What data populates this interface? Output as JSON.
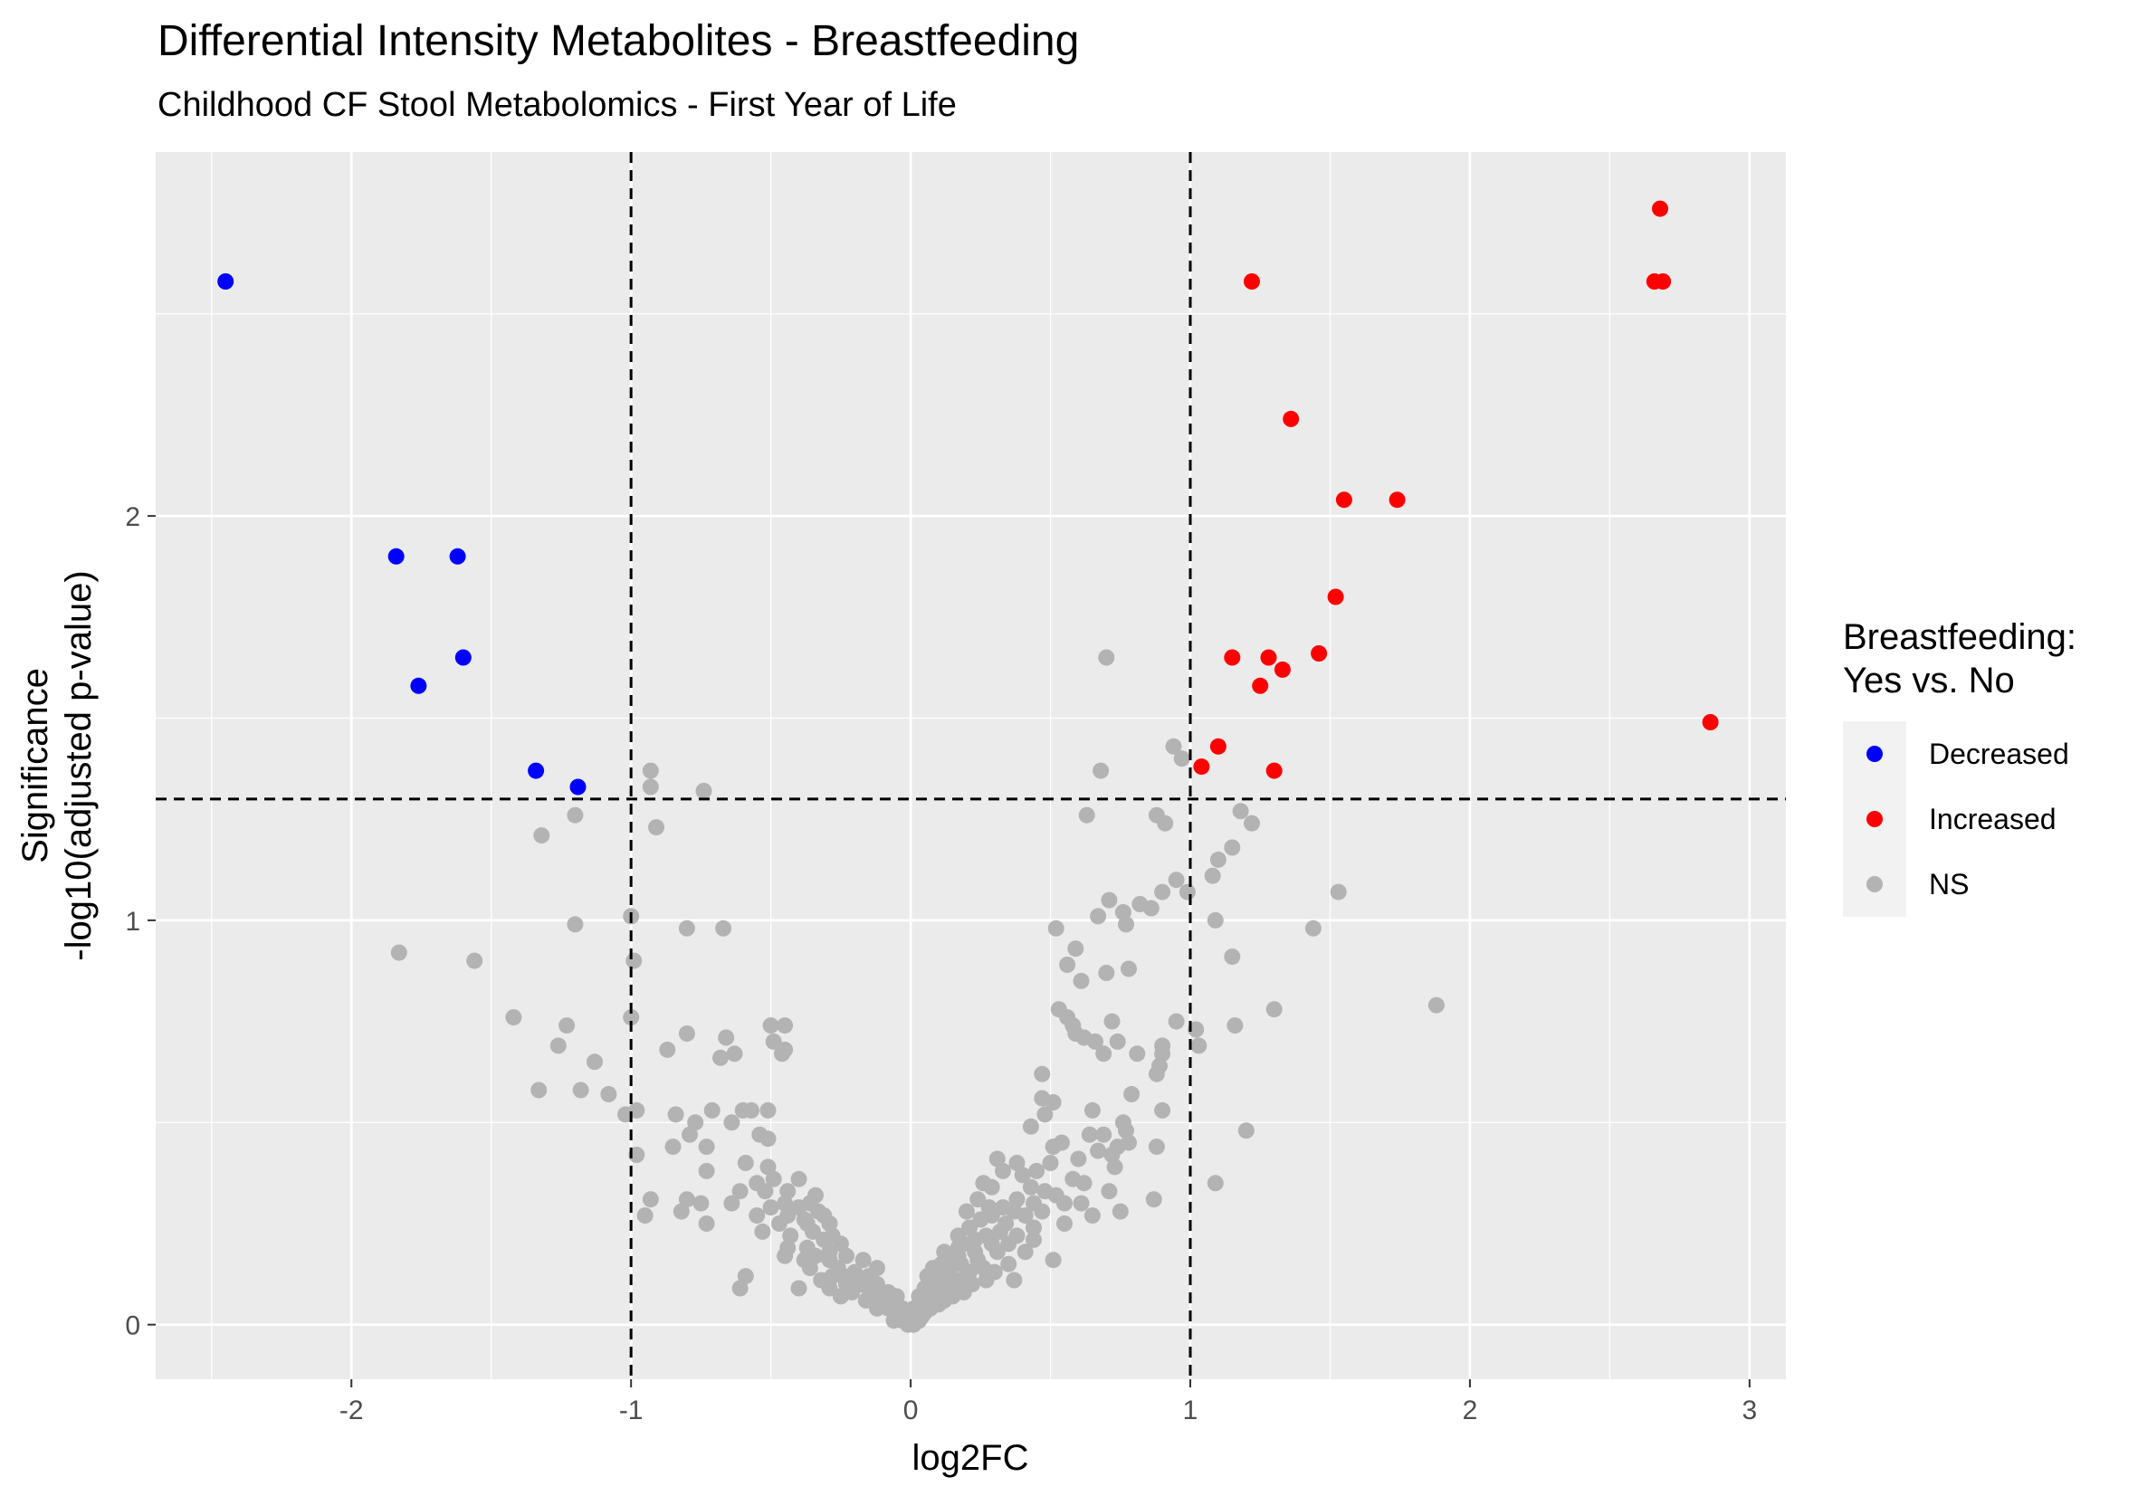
{
  "chart_data": {
    "type": "scatter",
    "title": "Differential Intensity Metabolites - Breastfeeding",
    "subtitle": "Childhood CF Stool Metabolomics - First Year of Life",
    "xlabel": "log2FC",
    "ylabel_line1": "Significance",
    "ylabel_line2": "-log10(adjusted p-value)",
    "xlim": [
      -2.7,
      3.13
    ],
    "ylim": [
      -0.135,
      2.9
    ],
    "x_ticks": [
      -2,
      -1,
      0,
      1,
      2,
      3
    ],
    "y_ticks": [
      0,
      1,
      2
    ],
    "x_thresholds": [
      -1,
      1
    ],
    "y_threshold": 1.3,
    "grid": true,
    "legend": {
      "title_line1": "Breastfeeding:",
      "title_line2": "Yes vs. No",
      "placement": "right",
      "entries": [
        "Decreased",
        "Increased",
        "NS"
      ]
    },
    "colors": {
      "Decreased": "#0000ff",
      "Increased": "#ff0000",
      "NS": "#b3b3b3",
      "panel": "#ebebeb",
      "grid": "#ffffff"
    },
    "series": [
      {
        "name": "Decreased",
        "points": [
          [
            -2.45,
            2.58
          ],
          [
            -1.84,
            1.9
          ],
          [
            -1.62,
            1.9
          ],
          [
            -1.6,
            1.65
          ],
          [
            -1.76,
            1.58
          ],
          [
            -1.34,
            1.37
          ],
          [
            -1.19,
            1.33
          ]
        ]
      },
      {
        "name": "Increased",
        "points": [
          [
            2.68,
            2.76
          ],
          [
            2.66,
            2.58
          ],
          [
            2.69,
            2.58
          ],
          [
            1.22,
            2.58
          ],
          [
            1.36,
            2.24
          ],
          [
            1.55,
            2.04
          ],
          [
            1.74,
            2.04
          ],
          [
            1.52,
            1.8
          ],
          [
            1.15,
            1.65
          ],
          [
            1.28,
            1.65
          ],
          [
            1.46,
            1.66
          ],
          [
            1.33,
            1.62
          ],
          [
            1.25,
            1.58
          ],
          [
            2.86,
            1.49
          ],
          [
            1.1,
            1.43
          ],
          [
            1.04,
            1.38
          ],
          [
            1.3,
            1.37
          ]
        ]
      },
      {
        "name": "NS",
        "points": [
          [
            0.7,
            1.65
          ],
          [
            0.94,
            1.43
          ],
          [
            0.97,
            1.4
          ],
          [
            0.68,
            1.37
          ],
          [
            -0.93,
            1.37
          ],
          [
            -0.93,
            1.33
          ],
          [
            -0.74,
            1.32
          ],
          [
            0.63,
            1.26
          ],
          [
            1.18,
            1.27
          ],
          [
            1.22,
            1.24
          ],
          [
            0.88,
            1.26
          ],
          [
            0.91,
            1.24
          ],
          [
            -1.2,
            1.26
          ],
          [
            -0.91,
            1.23
          ],
          [
            -1.32,
            1.21
          ],
          [
            1.15,
            1.18
          ],
          [
            1.1,
            1.15
          ],
          [
            1.08,
            1.11
          ],
          [
            0.95,
            1.1
          ],
          [
            1.53,
            1.07
          ],
          [
            0.9,
            1.07
          ],
          [
            0.99,
            1.07
          ],
          [
            0.71,
            1.05
          ],
          [
            0.82,
            1.04
          ],
          [
            0.86,
            1.03
          ],
          [
            0.76,
            1.02
          ],
          [
            0.67,
            1.01
          ],
          [
            0.77,
            0.99
          ],
          [
            1.09,
            1.0
          ],
          [
            -1.0,
            1.01
          ],
          [
            -1.2,
            0.99
          ],
          [
            -0.8,
            0.98
          ],
          [
            -0.67,
            0.98
          ],
          [
            0.52,
            0.98
          ],
          [
            1.44,
            0.98
          ],
          [
            0.59,
            0.93
          ],
          [
            -1.83,
            0.92
          ],
          [
            1.15,
            0.91
          ],
          [
            -1.56,
            0.9
          ],
          [
            -0.99,
            0.9
          ],
          [
            0.56,
            0.89
          ],
          [
            0.78,
            0.88
          ],
          [
            0.7,
            0.87
          ],
          [
            0.61,
            0.85
          ],
          [
            1.88,
            0.79
          ],
          [
            0.53,
            0.78
          ],
          [
            1.3,
            0.78
          ],
          [
            -1.42,
            0.76
          ],
          [
            -1.0,
            0.76
          ],
          [
            0.56,
            0.76
          ],
          [
            0.58,
            0.74
          ],
          [
            -1.23,
            0.74
          ],
          [
            -0.5,
            0.74
          ],
          [
            -0.45,
            0.74
          ],
          [
            0.72,
            0.75
          ],
          [
            0.95,
            0.75
          ],
          [
            1.16,
            0.74
          ],
          [
            1.02,
            0.73
          ],
          [
            -0.8,
            0.72
          ],
          [
            0.59,
            0.72
          ],
          [
            0.62,
            0.71
          ],
          [
            -0.66,
            0.71
          ],
          [
            -0.49,
            0.7
          ],
          [
            0.66,
            0.7
          ],
          [
            0.74,
            0.7
          ],
          [
            0.9,
            0.69
          ],
          [
            1.03,
            0.69
          ],
          [
            -1.26,
            0.69
          ],
          [
            -0.87,
            0.68
          ],
          [
            -0.45,
            0.68
          ],
          [
            -0.63,
            0.67
          ],
          [
            0.69,
            0.67
          ],
          [
            0.81,
            0.67
          ],
          [
            0.9,
            0.67
          ],
          [
            -0.46,
            0.67
          ],
          [
            -0.68,
            0.66
          ],
          [
            -1.13,
            0.65
          ],
          [
            0.89,
            0.64
          ],
          [
            0.88,
            0.62
          ],
          [
            0.47,
            0.62
          ],
          [
            -1.33,
            0.58
          ],
          [
            -1.18,
            0.58
          ],
          [
            -1.08,
            0.57
          ],
          [
            0.79,
            0.57
          ],
          [
            0.47,
            0.56
          ],
          [
            0.51,
            0.55
          ],
          [
            0.9,
            0.53
          ],
          [
            -0.51,
            0.53
          ],
          [
            -1.02,
            0.52
          ],
          [
            -0.98,
            0.53
          ],
          [
            -0.84,
            0.52
          ],
          [
            -0.71,
            0.53
          ],
          [
            -0.6,
            0.53
          ],
          [
            -0.57,
            0.53
          ],
          [
            -0.64,
            0.5
          ],
          [
            -0.77,
            0.5
          ],
          [
            0.65,
            0.53
          ],
          [
            0.48,
            0.52
          ],
          [
            0.76,
            0.5
          ],
          [
            0.43,
            0.49
          ],
          [
            0.64,
            0.47
          ],
          [
            0.69,
            0.47
          ],
          [
            0.77,
            0.48
          ],
          [
            1.2,
            0.48
          ],
          [
            -0.79,
            0.47
          ],
          [
            -0.54,
            0.47
          ],
          [
            -0.51,
            0.46
          ],
          [
            0.54,
            0.45
          ],
          [
            0.78,
            0.45
          ],
          [
            0.88,
            0.44
          ],
          [
            0.74,
            0.44
          ],
          [
            0.51,
            0.44
          ],
          [
            -0.73,
            0.44
          ],
          [
            -0.85,
            0.44
          ],
          [
            0.67,
            0.43
          ],
          [
            0.72,
            0.42
          ],
          [
            -0.98,
            0.42
          ],
          [
            0.31,
            0.41
          ],
          [
            0.6,
            0.41
          ],
          [
            0.5,
            0.4
          ],
          [
            0.38,
            0.4
          ],
          [
            -0.59,
            0.4
          ],
          [
            -0.51,
            0.39
          ],
          [
            0.73,
            0.39
          ],
          [
            -0.73,
            0.38
          ],
          [
            0.45,
            0.38
          ],
          [
            0.33,
            0.38
          ],
          [
            0.4,
            0.37
          ],
          [
            -0.49,
            0.36
          ],
          [
            0.58,
            0.36
          ],
          [
            -0.4,
            0.36
          ],
          [
            0.26,
            0.35
          ],
          [
            -0.55,
            0.35
          ],
          [
            1.09,
            0.35
          ],
          [
            0.62,
            0.35
          ],
          [
            0.43,
            0.34
          ],
          [
            0.29,
            0.34
          ],
          [
            0.48,
            0.33
          ],
          [
            -0.61,
            0.33
          ],
          [
            -0.52,
            0.33
          ],
          [
            -0.44,
            0.33
          ],
          [
            0.71,
            0.33
          ],
          [
            -0.34,
            0.32
          ],
          [
            0.52,
            0.32
          ],
          [
            0.38,
            0.31
          ],
          [
            0.24,
            0.31
          ],
          [
            -0.93,
            0.31
          ],
          [
            -0.8,
            0.31
          ],
          [
            -0.75,
            0.3
          ],
          [
            -0.64,
            0.3
          ],
          [
            -0.45,
            0.3
          ],
          [
            -0.36,
            0.3
          ],
          [
            0.55,
            0.3
          ],
          [
            0.44,
            0.3
          ],
          [
            0.33,
            0.29
          ],
          [
            0.28,
            0.29
          ],
          [
            0.61,
            0.3
          ],
          [
            0.87,
            0.31
          ],
          [
            -0.5,
            0.29
          ],
          [
            -0.4,
            0.29
          ],
          [
            -0.33,
            0.28
          ],
          [
            -0.82,
            0.28
          ],
          [
            0.2,
            0.28
          ],
          [
            0.47,
            0.28
          ],
          [
            0.37,
            0.28
          ],
          [
            -0.95,
            0.27
          ],
          [
            -0.55,
            0.27
          ],
          [
            -0.44,
            0.27
          ],
          [
            -0.31,
            0.27
          ],
          [
            0.29,
            0.27
          ],
          [
            0.65,
            0.27
          ],
          [
            0.75,
            0.28
          ],
          [
            0.41,
            0.27
          ],
          [
            -0.38,
            0.26
          ],
          [
            0.25,
            0.26
          ],
          [
            -0.29,
            0.25
          ],
          [
            -0.73,
            0.25
          ],
          [
            -0.47,
            0.25
          ],
          [
            -0.37,
            0.25
          ],
          [
            0.34,
            0.25
          ],
          [
            0.55,
            0.25
          ],
          [
            0.21,
            0.24
          ],
          [
            0.44,
            0.24
          ],
          [
            -0.53,
            0.23
          ],
          [
            -0.35,
            0.23
          ],
          [
            0.32,
            0.23
          ],
          [
            -0.43,
            0.22
          ],
          [
            -0.28,
            0.22
          ],
          [
            0.17,
            0.22
          ],
          [
            0.27,
            0.22
          ],
          [
            0.38,
            0.22
          ],
          [
            -0.31,
            0.21
          ],
          [
            0.23,
            0.21
          ],
          [
            0.44,
            0.21
          ],
          [
            -0.25,
            0.2
          ],
          [
            0.19,
            0.2
          ],
          [
            0.29,
            0.2
          ],
          [
            0.35,
            0.2
          ],
          [
            -0.37,
            0.19
          ],
          [
            -0.44,
            0.19
          ],
          [
            0.17,
            0.19
          ],
          [
            -0.29,
            0.18
          ],
          [
            0.12,
            0.18
          ],
          [
            0.23,
            0.18
          ],
          [
            0.31,
            0.18
          ],
          [
            -0.34,
            0.17
          ],
          [
            0.41,
            0.18
          ],
          [
            -0.23,
            0.17
          ],
          [
            0.17,
            0.17
          ],
          [
            -0.45,
            0.17
          ],
          [
            0.14,
            0.16
          ],
          [
            0.24,
            0.16
          ],
          [
            -0.29,
            0.16
          ],
          [
            -0.17,
            0.16
          ],
          [
            0.51,
            0.16
          ],
          [
            -0.38,
            0.16
          ],
          [
            0.35,
            0.15
          ],
          [
            0.11,
            0.15
          ],
          [
            0.18,
            0.15
          ],
          [
            0.26,
            0.14
          ],
          [
            -0.26,
            0.14
          ],
          [
            -0.12,
            0.14
          ],
          [
            -0.36,
            0.14
          ],
          [
            0.08,
            0.14
          ],
          [
            -0.2,
            0.13
          ],
          [
            0.14,
            0.13
          ],
          [
            0.21,
            0.13
          ],
          [
            0.3,
            0.13
          ],
          [
            -0.28,
            0.12
          ],
          [
            -0.15,
            0.12
          ],
          [
            -0.59,
            0.12
          ],
          [
            0.06,
            0.12
          ],
          [
            0.12,
            0.12
          ],
          [
            -0.24,
            0.12
          ],
          [
            0.18,
            0.11
          ],
          [
            -0.32,
            0.11
          ],
          [
            0.37,
            0.11
          ],
          [
            0.27,
            0.11
          ],
          [
            -0.18,
            0.1
          ],
          [
            0.09,
            0.1
          ],
          [
            0.15,
            0.1
          ],
          [
            -0.12,
            0.1
          ],
          [
            -0.23,
            0.1
          ],
          [
            0.22,
            0.1
          ],
          [
            -0.29,
            0.09
          ],
          [
            -0.61,
            0.09
          ],
          [
            -0.4,
            0.09
          ],
          [
            0.05,
            0.09
          ],
          [
            -0.15,
            0.09
          ],
          [
            0.11,
            0.09
          ],
          [
            0.19,
            0.08
          ],
          [
            -0.08,
            0.08
          ],
          [
            -0.21,
            0.08
          ],
          [
            0.08,
            0.08
          ],
          [
            -0.13,
            0.08
          ],
          [
            0.15,
            0.07
          ],
          [
            -0.25,
            0.07
          ],
          [
            -0.05,
            0.07
          ],
          [
            0.03,
            0.07
          ],
          [
            -0.1,
            0.06
          ],
          [
            0.12,
            0.06
          ],
          [
            0.07,
            0.06
          ],
          [
            -0.16,
            0.06
          ],
          [
            -0.06,
            0.05
          ],
          [
            0.04,
            0.05
          ],
          [
            0.1,
            0.05
          ],
          [
            -0.11,
            0.05
          ],
          [
            0.01,
            0.04
          ],
          [
            -0.03,
            0.04
          ],
          [
            0.07,
            0.04
          ],
          [
            -0.08,
            0.04
          ],
          [
            -0.12,
            0.04
          ],
          [
            0.05,
            0.03
          ],
          [
            -0.02,
            0.03
          ],
          [
            -0.05,
            0.02
          ],
          [
            0.02,
            0.02
          ],
          [
            0.04,
            0.02
          ],
          [
            -0.03,
            0.01
          ],
          [
            0.0,
            0.01
          ],
          [
            0.01,
            0.0
          ],
          [
            -0.01,
            0.0
          ],
          [
            0.03,
            0.01
          ],
          [
            -0.06,
            0.01
          ]
        ]
      }
    ]
  }
}
